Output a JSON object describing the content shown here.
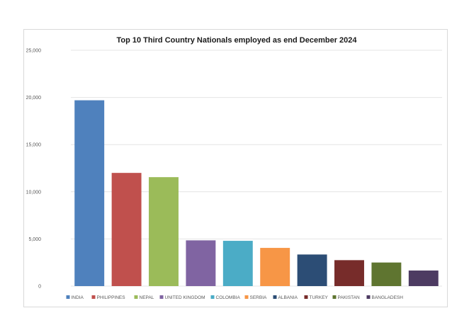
{
  "chart_data": {
    "type": "bar",
    "title": "Top 10 Third Country Nationals employed as end December 2024",
    "xlabel": "",
    "ylabel": "",
    "ylim": [
      0,
      25000
    ],
    "yticks": [
      "0",
      "5,000",
      "10,000",
      "15,000",
      "20,000",
      "25,000"
    ],
    "ytick_values": [
      0,
      5000,
      10000,
      15000,
      20000,
      25000
    ],
    "grid": true,
    "legend_position": "bottom",
    "series": [
      {
        "name": "INDIA",
        "value": 19700,
        "color": "#4f81bd"
      },
      {
        "name": "PHILIPPINES",
        "value": 12000,
        "color": "#c0504d"
      },
      {
        "name": "NEPAL",
        "value": 11550,
        "color": "#9bbb59"
      },
      {
        "name": "UNITED KINGDOM",
        "value": 4850,
        "color": "#8064a2"
      },
      {
        "name": "COLOMBIA",
        "value": 4800,
        "color": "#4bacc6"
      },
      {
        "name": "SERBIA",
        "value": 4050,
        "color": "#f79646"
      },
      {
        "name": "ALBANIA",
        "value": 3350,
        "color": "#2c4d75"
      },
      {
        "name": "TURKEY",
        "value": 2750,
        "color": "#772c2a"
      },
      {
        "name": "PAKISTAN",
        "value": 2500,
        "color": "#5f7530"
      },
      {
        "name": "BANGLADESH",
        "value": 1650,
        "color": "#4d3b62"
      }
    ]
  }
}
